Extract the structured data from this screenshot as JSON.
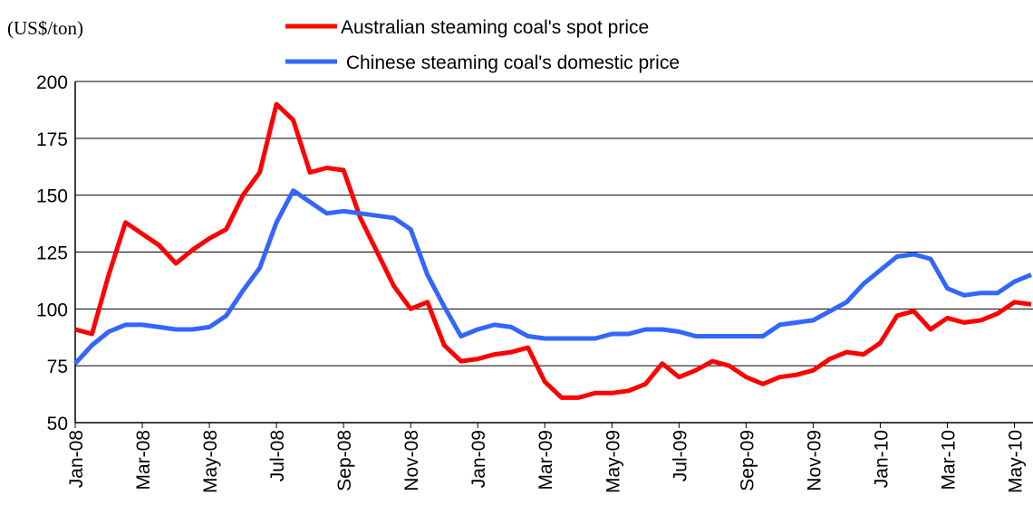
{
  "chart_data": {
    "type": "line",
    "y_axis_label": "(US$/ton)",
    "categories": [
      "Jan-08",
      null,
      null,
      null,
      "Mar-08",
      null,
      null,
      null,
      "May-08",
      null,
      null,
      null,
      "Jul-08",
      null,
      null,
      null,
      "Sep-08",
      null,
      null,
      null,
      "Nov-08",
      null,
      null,
      null,
      "Jan-09",
      null,
      null,
      null,
      "Mar-09",
      null,
      null,
      null,
      "May-09",
      null,
      null,
      null,
      "Jul-09",
      null,
      null,
      null,
      "Sep-09",
      null,
      null,
      null,
      "Nov-09",
      null,
      null,
      null,
      "Jan-10",
      null,
      null,
      null,
      "Mar-10",
      null,
      null,
      null,
      "May-10",
      null
    ],
    "series": [
      {
        "name": "Australian steaming coal's spot price",
        "color": "#ff0000",
        "values": [
          91,
          89,
          115,
          138,
          133,
          128,
          120,
          126,
          131,
          135,
          150,
          160,
          190,
          183,
          160,
          162,
          161,
          140,
          125,
          110,
          100,
          103,
          84,
          77,
          78,
          80,
          81,
          83,
          68,
          61,
          61,
          63,
          63,
          64,
          67,
          76,
          70,
          73,
          77,
          75,
          70,
          67,
          70,
          71,
          73,
          78,
          81,
          80,
          85,
          97,
          99,
          91,
          96,
          94,
          95,
          98,
          103,
          102
        ]
      },
      {
        "name": " Chinese steaming coal's domestic price",
        "color": "#3366ff",
        "values": [
          76,
          84,
          90,
          93,
          93,
          92,
          91,
          91,
          92,
          97,
          108,
          118,
          138,
          152,
          147,
          142,
          143,
          142,
          141,
          140,
          135,
          115,
          101,
          88,
          91,
          93,
          92,
          88,
          87,
          87,
          87,
          87,
          89,
          89,
          91,
          91,
          90,
          88,
          88,
          88,
          88,
          88,
          93,
          94,
          95,
          99,
          103,
          111,
          117,
          123,
          124,
          122,
          109,
          106,
          107,
          107,
          112,
          115
        ]
      }
    ],
    "ylim": [
      50,
      200
    ],
    "yticks": [
      50,
      75,
      100,
      125,
      150,
      175,
      200
    ],
    "grid": true
  }
}
